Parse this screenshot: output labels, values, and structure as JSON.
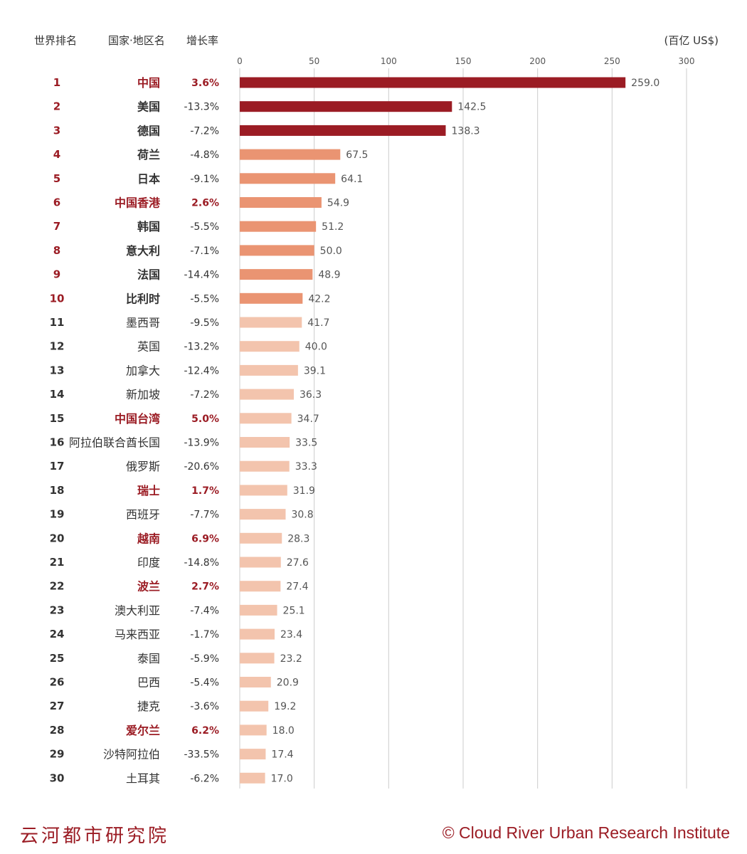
{
  "header": {
    "rank_label": "世界排名",
    "name_label": "国家·地区名",
    "growth_label": "增长率",
    "unit": "(百亿 US$)"
  },
  "footer": {
    "left": "云河都市研究院",
    "right": "© Cloud River Urban Research Institute"
  },
  "colors": {
    "top3": "#9b1c24",
    "top4_10": "#ea9472",
    "rest": "#f3c4ad",
    "highlight_text": "#9b1c24",
    "grid": "#cccccc"
  },
  "chart_data": {
    "type": "bar",
    "orientation": "horizontal",
    "xlim": [
      0,
      300
    ],
    "xticks": [
      0,
      50,
      100,
      150,
      200,
      250,
      300
    ],
    "grid": true,
    "rows": [
      {
        "rank": "1",
        "name": "中国",
        "growth": "3.6%",
        "value": 259.0,
        "value_label": "259.0",
        "highlight": true
      },
      {
        "rank": "2",
        "name": "美国",
        "growth": "-13.3%",
        "value": 142.5,
        "value_label": "142.5",
        "highlight": false
      },
      {
        "rank": "3",
        "name": "德国",
        "growth": "-7.2%",
        "value": 138.3,
        "value_label": "138.3",
        "highlight": false
      },
      {
        "rank": "4",
        "name": "荷兰",
        "growth": "-4.8%",
        "value": 67.5,
        "value_label": "67.5",
        "highlight": false
      },
      {
        "rank": "5",
        "name": "日本",
        "growth": "-9.1%",
        "value": 64.1,
        "value_label": "64.1",
        "highlight": false
      },
      {
        "rank": "6",
        "name": "中国香港",
        "growth": "2.6%",
        "value": 54.9,
        "value_label": "54.9",
        "highlight": true
      },
      {
        "rank": "7",
        "name": "韩国",
        "growth": "-5.5%",
        "value": 51.2,
        "value_label": "51.2",
        "highlight": false
      },
      {
        "rank": "8",
        "name": "意大利",
        "growth": "-7.1%",
        "value": 50.0,
        "value_label": "50.0",
        "highlight": false
      },
      {
        "rank": "9",
        "name": "法国",
        "growth": "-14.4%",
        "value": 48.9,
        "value_label": "48.9",
        "highlight": false
      },
      {
        "rank": "10",
        "name": "比利时",
        "growth": "-5.5%",
        "value": 42.2,
        "value_label": "42.2",
        "highlight": false
      },
      {
        "rank": "11",
        "name": "墨西哥",
        "growth": "-9.5%",
        "value": 41.7,
        "value_label": "41.7",
        "highlight": false
      },
      {
        "rank": "12",
        "name": "英国",
        "growth": "-13.2%",
        "value": 40.0,
        "value_label": "40.0",
        "highlight": false
      },
      {
        "rank": "13",
        "name": "加拿大",
        "growth": "-12.4%",
        "value": 39.1,
        "value_label": "39.1",
        "highlight": false
      },
      {
        "rank": "14",
        "name": "新加坡",
        "growth": "-7.2%",
        "value": 36.3,
        "value_label": "36.3",
        "highlight": false
      },
      {
        "rank": "15",
        "name": "中国台湾",
        "growth": "5.0%",
        "value": 34.7,
        "value_label": "34.7",
        "highlight": true
      },
      {
        "rank": "16",
        "name": "阿拉伯联合酋长国",
        "growth": "-13.9%",
        "value": 33.5,
        "value_label": "33.5",
        "highlight": false
      },
      {
        "rank": "17",
        "name": "俄罗斯",
        "growth": "-20.6%",
        "value": 33.3,
        "value_label": "33.3",
        "highlight": false
      },
      {
        "rank": "18",
        "name": "瑞士",
        "growth": "1.7%",
        "value": 31.9,
        "value_label": "31.9",
        "highlight": true
      },
      {
        "rank": "19",
        "name": "西班牙",
        "growth": "-7.7%",
        "value": 30.8,
        "value_label": "30.8",
        "highlight": false
      },
      {
        "rank": "20",
        "name": "越南",
        "growth": "6.9%",
        "value": 28.3,
        "value_label": "28.3",
        "highlight": true
      },
      {
        "rank": "21",
        "name": "印度",
        "growth": "-14.8%",
        "value": 27.6,
        "value_label": "27.6",
        "highlight": false
      },
      {
        "rank": "22",
        "name": "波兰",
        "growth": "2.7%",
        "value": 27.4,
        "value_label": "27.4",
        "highlight": true
      },
      {
        "rank": "23",
        "name": "澳大利亚",
        "growth": "-7.4%",
        "value": 25.1,
        "value_label": "25.1",
        "highlight": false
      },
      {
        "rank": "24",
        "name": "马来西亚",
        "growth": "-1.7%",
        "value": 23.4,
        "value_label": "23.4",
        "highlight": false
      },
      {
        "rank": "25",
        "name": "泰国",
        "growth": "-5.9%",
        "value": 23.2,
        "value_label": "23.2",
        "highlight": false
      },
      {
        "rank": "26",
        "name": "巴西",
        "growth": "-5.4%",
        "value": 20.9,
        "value_label": "20.9",
        "highlight": false
      },
      {
        "rank": "27",
        "name": "捷克",
        "growth": "-3.6%",
        "value": 19.2,
        "value_label": "19.2",
        "highlight": false
      },
      {
        "rank": "28",
        "name": "爱尔兰",
        "growth": "6.2%",
        "value": 18.0,
        "value_label": "18.0",
        "highlight": true
      },
      {
        "rank": "29",
        "name": "沙特阿拉伯",
        "growth": "-33.5%",
        "value": 17.4,
        "value_label": "17.4",
        "highlight": false
      },
      {
        "rank": "30",
        "name": "土耳其",
        "growth": "-6.2%",
        "value": 17.0,
        "value_label": "17.0",
        "highlight": false
      }
    ]
  }
}
